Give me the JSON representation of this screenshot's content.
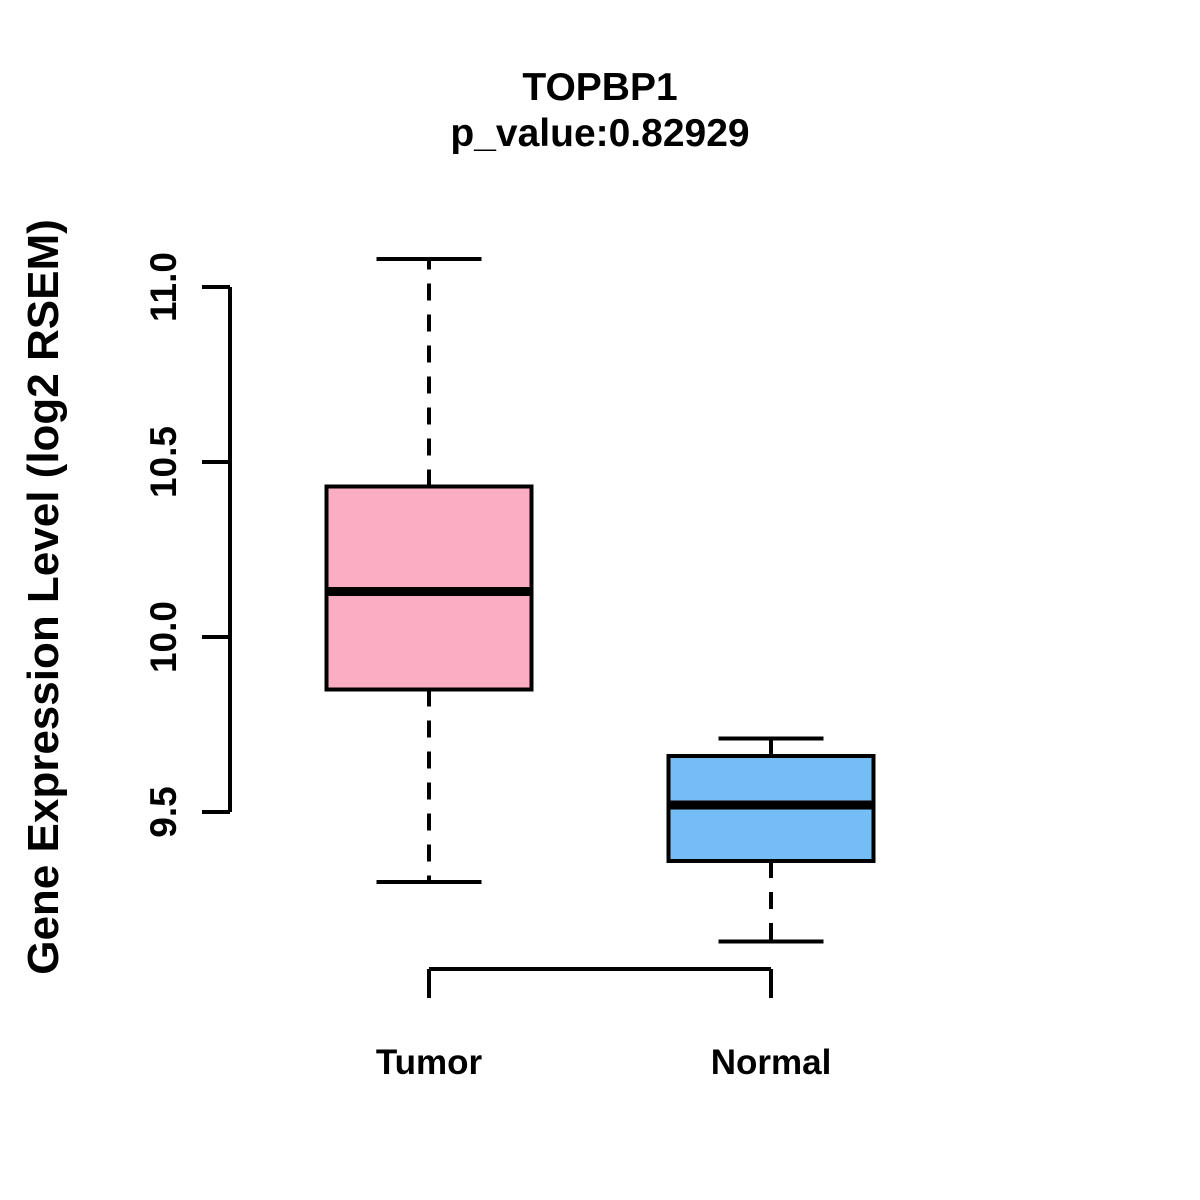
{
  "chart_data": {
    "type": "boxplot",
    "title": "TOPBP1",
    "subtitle": "p_value:0.82929",
    "ylabel": "Gene Expression Level (log2 RSEM)",
    "xlabel": "",
    "ylim": [
      9.5,
      11.0
    ],
    "yticks": [
      {
        "value": 9.5,
        "label": "9.5"
      },
      {
        "value": 10.0,
        "label": "10.0"
      },
      {
        "value": 10.5,
        "label": "10.5"
      },
      {
        "value": 11.0,
        "label": "11.0"
      }
    ],
    "grid": false,
    "legend": "none",
    "categories": [
      "Tumor",
      "Normal"
    ],
    "series": [
      {
        "name": "Tumor",
        "box_color": "#FBAEC3",
        "whisker_low": 9.3,
        "q1": 9.85,
        "median": 10.13,
        "q3": 10.43,
        "whisker_high": 11.08
      },
      {
        "name": "Normal",
        "box_color": "#74BEF5",
        "whisker_low": 9.13,
        "q1": 9.36,
        "median": 9.52,
        "q3": 9.66,
        "whisker_high": 9.71
      }
    ],
    "line_color": "#000000",
    "background_color": "#FFFFFF"
  }
}
